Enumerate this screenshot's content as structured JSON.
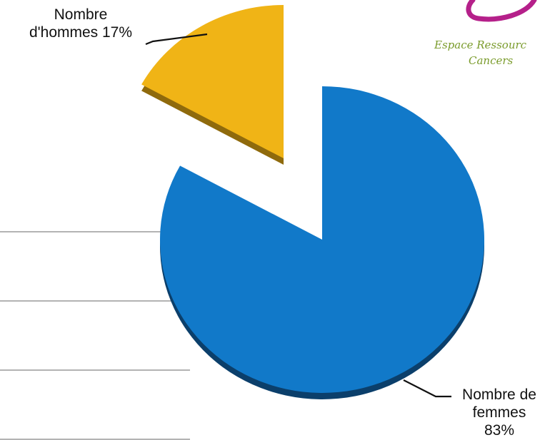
{
  "chart_data": {
    "type": "pie",
    "style": "3d-exploded",
    "slices": [
      {
        "name": "Nombre d'hommes",
        "value": 17,
        "color": "#f0b416",
        "side_color": "#8f6a0c",
        "exploded": true
      },
      {
        "name": "Nombre de femmes",
        "value": 83,
        "color": "#1179c9",
        "side_color": "#0b3f6b",
        "exploded": false
      }
    ],
    "labels": {
      "hommes": [
        "Nombre",
        "d'hommes 17%"
      ],
      "femmes": [
        "Nombre de",
        "femmes",
        "83%"
      ]
    },
    "logo": {
      "text_line1": "Espace Ressourc",
      "text_line2": "Cancers",
      "accent_color": "#b5208a",
      "text_color": "#7a9b2b"
    }
  }
}
